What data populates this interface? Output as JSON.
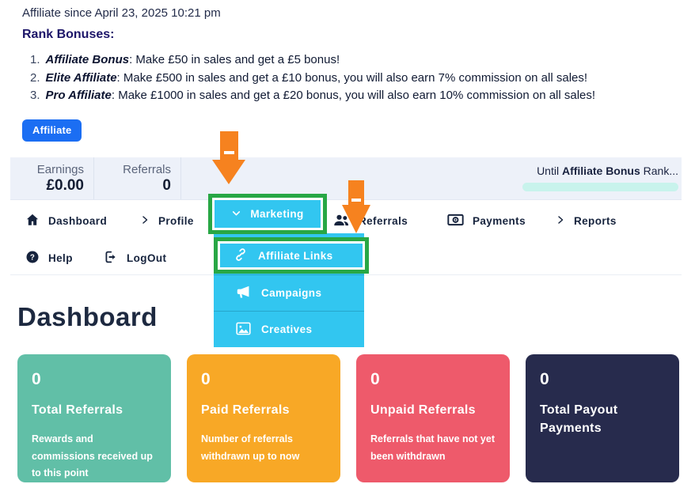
{
  "colors": {
    "blue": "#1b6ef3",
    "cyan": "#32c6f0",
    "green": "#28a745",
    "orange": "#f6821f",
    "indigo": "#1d1669",
    "bar_bg": "#edf1f9",
    "track": "#c8f3ec",
    "card_teal": "#61bfa7",
    "card_orange": "#f8a826",
    "card_red": "#ee5a6b",
    "card_navy": "#272b4d"
  },
  "header": {
    "since": "Affiliate since April 23, 2025 10:21 pm",
    "rank_title": "Rank Bonuses:",
    "ranks": [
      {
        "num": "1.",
        "term": "Affiliate Bonus",
        "text": ": Make £50 in sales and get a £5 bonus!"
      },
      {
        "num": "2.",
        "term": "Elite Affiliate",
        "text": ": Make £500 in sales and get a £10 bonus, you will also earn 7% commission on all sales!"
      },
      {
        "num": "3.",
        "term": "Pro Affiliate",
        "text": ": Make £1000 in sales and get a £20 bonus, you will also earn 10% commission on all sales!"
      }
    ],
    "affiliate_button": "Affiliate"
  },
  "stats": {
    "earnings_label": "Earnings",
    "earnings_value": "£0.00",
    "referrals_label": "Referrals",
    "referrals_value": "0",
    "until_prefix": "Until ",
    "until_rank": "Affiliate Bonus",
    "until_suffix": " Rank...",
    "progress_percent": 0
  },
  "nav": {
    "dashboard": "Dashboard",
    "profile": "Profile",
    "marketing": "Marketing",
    "referrals": "Referrals",
    "payments": "Payments",
    "reports": "Reports",
    "help": "Help",
    "logout": "LogOut"
  },
  "marketing_menu": {
    "affiliate_links": "Affiliate Links",
    "campaigns": "Campaigns",
    "creatives": "Creatives"
  },
  "page": {
    "title": "Dashboard"
  },
  "cards": [
    {
      "value": "0",
      "title": "Total Referrals",
      "description": "Rewards and commissions received up to this point"
    },
    {
      "value": "0",
      "title": "Paid Referrals",
      "description": "Number of referrals withdrawn up to now"
    },
    {
      "value": "0",
      "title": "Unpaid Referrals",
      "description": "Referrals that have not yet been withdrawn"
    },
    {
      "value": "0",
      "title": "Total Payout Payments",
      "description": ""
    }
  ]
}
